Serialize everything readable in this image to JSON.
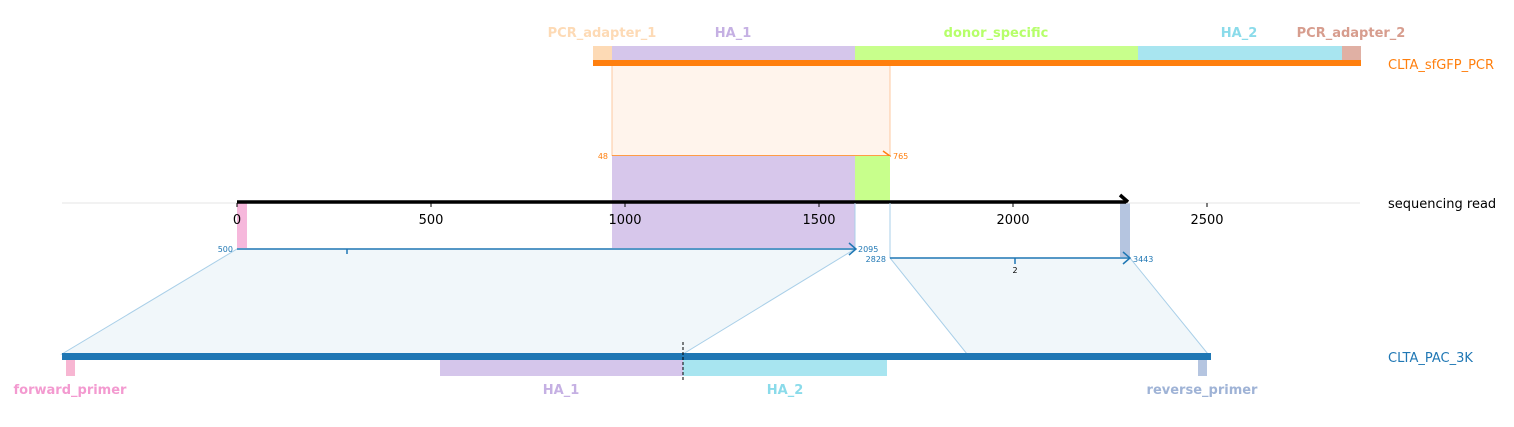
{
  "chart_data": {
    "type": "sequence-alignment-map",
    "read": {
      "name": "sequencing read",
      "length": 2300,
      "axis_ticks": [
        0,
        500,
        1000,
        1500,
        2000,
        2500
      ],
      "features": [
        {
          "name": "",
          "start": 0,
          "end": 25,
          "color": "#f6b8dc"
        },
        {
          "name": "",
          "start": 970,
          "end": 1600,
          "color": "#d7c7eb"
        },
        {
          "name": "",
          "start": 1600,
          "end": 1690,
          "color": "#c8ff8c"
        },
        {
          "name": "",
          "start": 2278,
          "end": 2305,
          "color": "#b5c5e0"
        }
      ]
    },
    "references": [
      {
        "name": "CLTA_sfGFP_PCR",
        "color": "#ff7f0e",
        "features": [
          {
            "name": "PCR_adapter_1",
            "color": "#fddab5"
          },
          {
            "name": "HA_1",
            "color": "#d5c6eb"
          },
          {
            "name": "donor_specific",
            "color": "#c8ff8c"
          },
          {
            "name": "HA_2",
            "color": "#a8e5f0"
          },
          {
            "name": "PCR_adapter_2",
            "color": "#e0b0a4"
          }
        ],
        "alignments": [
          {
            "read_start": 970,
            "read_end": 1690,
            "ref_start": 48,
            "ref_end": 765,
            "strand": "+"
          }
        ]
      },
      {
        "name": "CLTA_PAC_3K",
        "color": "#1f77b4",
        "features": [
          {
            "name": "forward_primer",
            "color": "#f7b6d2"
          },
          {
            "name": "HA_1",
            "color": "#d5c6eb"
          },
          {
            "name": "HA_2",
            "color": "#a8e5f0"
          },
          {
            "name": "reverse_primer",
            "color": "#b5c5e0"
          }
        ],
        "alignments": [
          {
            "read_start": 0,
            "read_end": 1600,
            "ref_start": 500,
            "ref_end": 2095,
            "strand": "+",
            "mark": ""
          },
          {
            "read_start": 1690,
            "read_end": 2305,
            "ref_start": 2828,
            "ref_end": 3443,
            "strand": "+",
            "mark": "2"
          }
        ]
      }
    ]
  }
}
